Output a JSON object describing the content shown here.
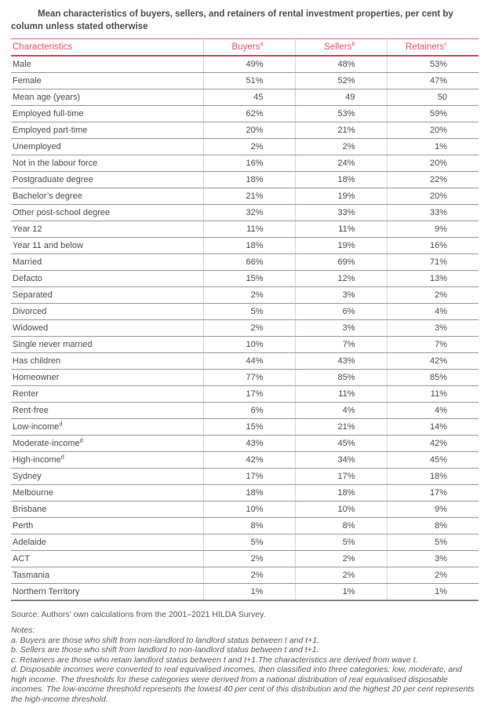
{
  "title": "Mean characteristics of buyers, sellers, and retainers of rental investment properties, per cent by column unless stated otherwise",
  "table": {
    "columns": [
      {
        "label": "Characteristics",
        "sup": ""
      },
      {
        "label": "Buyers",
        "sup": "a"
      },
      {
        "label": "Sellers",
        "sup": "b"
      },
      {
        "label": "Retainers",
        "sup": "c"
      }
    ],
    "rows": [
      {
        "label": "Male",
        "sup": "",
        "buyers": "49%",
        "sellers": "48%",
        "retainers": "53%"
      },
      {
        "label": "Female",
        "sup": "",
        "buyers": "51%",
        "sellers": "52%",
        "retainers": "47%"
      },
      {
        "label": "Mean age (years)",
        "sup": "",
        "buyers": "45",
        "sellers": "49",
        "retainers": "50"
      },
      {
        "label": "Employed full-time",
        "sup": "",
        "buyers": "62%",
        "sellers": "53%",
        "retainers": "59%"
      },
      {
        "label": "Employed part-time",
        "sup": "",
        "buyers": "20%",
        "sellers": "21%",
        "retainers": "20%"
      },
      {
        "label": "Unemployed",
        "sup": "",
        "buyers": "2%",
        "sellers": "2%",
        "retainers": "1%"
      },
      {
        "label": "Not in the labour force",
        "sup": "",
        "buyers": "16%",
        "sellers": "24%",
        "retainers": "20%"
      },
      {
        "label": "Postgraduate degree",
        "sup": "",
        "buyers": "18%",
        "sellers": "18%",
        "retainers": "22%"
      },
      {
        "label": "Bachelor’s degree",
        "sup": "",
        "buyers": "21%",
        "sellers": "19%",
        "retainers": "20%"
      },
      {
        "label": "Other post-school degree",
        "sup": "",
        "buyers": "32%",
        "sellers": "33%",
        "retainers": "33%"
      },
      {
        "label": "Year 12",
        "sup": "",
        "buyers": "11%",
        "sellers": "11%",
        "retainers": "9%"
      },
      {
        "label": "Year 11 and below",
        "sup": "",
        "buyers": "18%",
        "sellers": "19%",
        "retainers": "16%"
      },
      {
        "label": "Married",
        "sup": "",
        "buyers": "66%",
        "sellers": "69%",
        "retainers": "71%"
      },
      {
        "label": "Defacto",
        "sup": "",
        "buyers": "15%",
        "sellers": "12%",
        "retainers": "13%"
      },
      {
        "label": "Separated",
        "sup": "",
        "buyers": "2%",
        "sellers": "3%",
        "retainers": "2%"
      },
      {
        "label": "Divorced",
        "sup": "",
        "buyers": "5%",
        "sellers": "6%",
        "retainers": "4%"
      },
      {
        "label": "Widowed",
        "sup": "",
        "buyers": "2%",
        "sellers": "3%",
        "retainers": "3%"
      },
      {
        "label": "Single never married",
        "sup": "",
        "buyers": "10%",
        "sellers": "7%",
        "retainers": "7%"
      },
      {
        "label": "Has children",
        "sup": "",
        "buyers": "44%",
        "sellers": "43%",
        "retainers": "42%"
      },
      {
        "label": "Homeowner",
        "sup": "",
        "buyers": "77%",
        "sellers": "85%",
        "retainers": "85%"
      },
      {
        "label": "Renter",
        "sup": "",
        "buyers": "17%",
        "sellers": "11%",
        "retainers": "11%"
      },
      {
        "label": "Rent-free",
        "sup": "",
        "buyers": "6%",
        "sellers": "4%",
        "retainers": "4%"
      },
      {
        "label": "Low-income",
        "sup": "d",
        "buyers": "15%",
        "sellers": "21%",
        "retainers": "14%"
      },
      {
        "label": "Moderate-income",
        "sup": "d",
        "buyers": "43%",
        "sellers": "45%",
        "retainers": "42%"
      },
      {
        "label": "High-income",
        "sup": "d",
        "buyers": "42%",
        "sellers": "34%",
        "retainers": "45%"
      },
      {
        "label": "Sydney",
        "sup": "",
        "buyers": "17%",
        "sellers": "17%",
        "retainers": "18%"
      },
      {
        "label": "Melbourne",
        "sup": "",
        "buyers": "18%",
        "sellers": "18%",
        "retainers": "17%"
      },
      {
        "label": "Brisbane",
        "sup": "",
        "buyers": "10%",
        "sellers": "10%",
        "retainers": "9%"
      },
      {
        "label": "Perth",
        "sup": "",
        "buyers": "8%",
        "sellers": "8%",
        "retainers": "8%"
      },
      {
        "label": "Adelaide",
        "sup": "",
        "buyers": "5%",
        "sellers": "5%",
        "retainers": "5%"
      },
      {
        "label": "ACT",
        "sup": "",
        "buyers": "2%",
        "sellers": "2%",
        "retainers": "3%"
      },
      {
        "label": "Tasmania",
        "sup": "",
        "buyers": "2%",
        "sellers": "2%",
        "retainers": "2%"
      },
      {
        "label": "Northern Territory",
        "sup": "",
        "buyers": "1%",
        "sellers": "1%",
        "retainers": "1%"
      }
    ]
  },
  "source": "Source: Authors’ own calculations from the 2001–2021 HILDA Survey.",
  "notes": {
    "heading": "Notes:",
    "items": [
      "a. Buyers are those who shift from non-landlord to landlord status between t and t+1.",
      "b. Sellers are those who shift from landlord to non-landlord status between t and t+1.",
      "c. Retainers are those who retain landlord status between t and t+1.The characteristics are derived from wave t.",
      "d. Disposable incomes were converted to real equivalised incomes, then classified into three categories: low, moderate, and high income. The thresholds for these categories were derived from a national distribution of real equivalised disposable incomes. The low-income threshold represents the lowest 40 per cent of this distribution and the highest 20 per cent represents the high-income threshold."
    ]
  },
  "colors": {
    "accent_red_text": "#df5566",
    "header_rule_red": "#d5495c",
    "top_rule_red": "#e26a7b",
    "row_rule_gray": "#9b9b9e",
    "column_rule_gray": "#d6d6d9",
    "bottom_rule_gray": "#85868a",
    "body_text": "#4c4d51",
    "notes_text": "#58595c"
  }
}
